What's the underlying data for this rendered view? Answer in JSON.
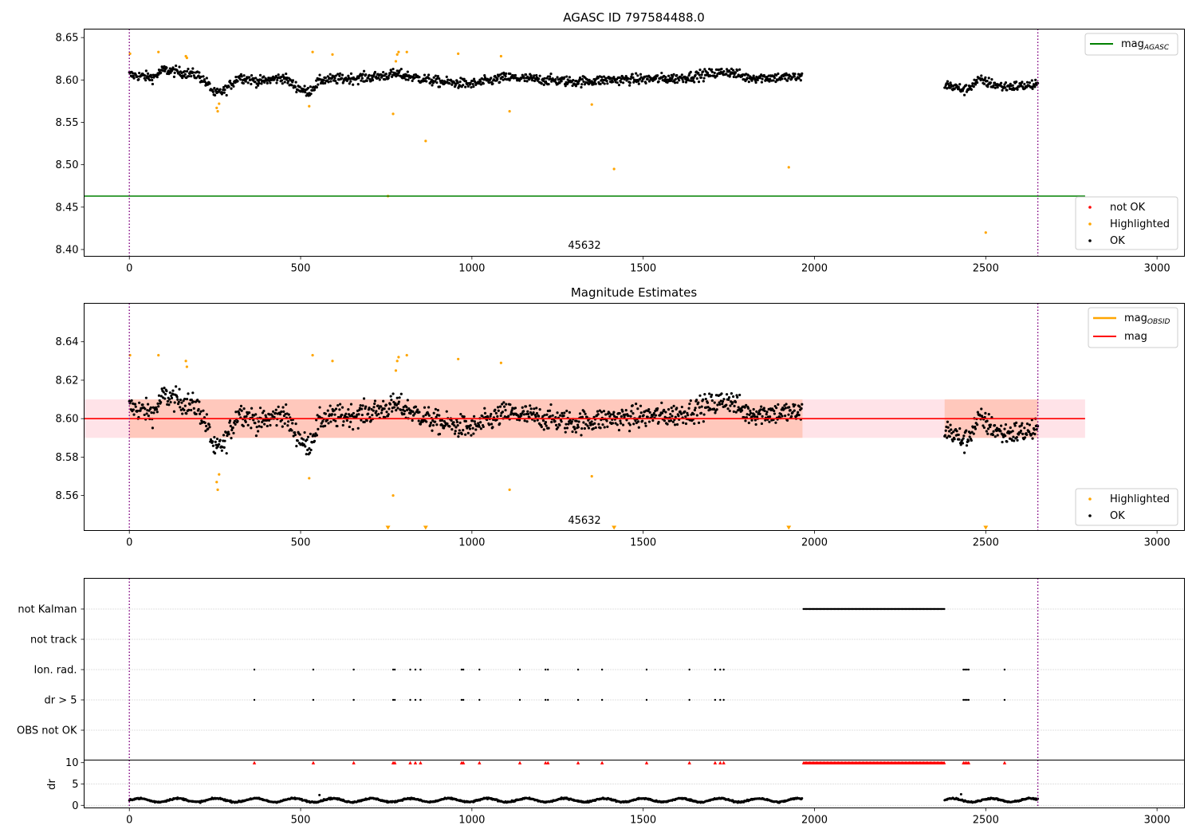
{
  "chart_data": [
    {
      "type": "scatter",
      "title": "AGASC ID 797584488.0",
      "xlim": [
        -132,
        3080
      ],
      "ylim": [
        8.392,
        8.66
      ],
      "xticks": [
        "0",
        "500",
        "1000",
        "1500",
        "2000",
        "2500",
        "3000"
      ],
      "yticks": [
        "8.40",
        "8.45",
        "8.50",
        "8.55",
        "8.60",
        "8.65"
      ],
      "annotation": "45632",
      "mag_agasc": 8.463,
      "obs_boundaries": [
        0,
        2652
      ],
      "legend_line": {
        "label_main": "mag",
        "label_sub": "AGASC",
        "color": "#008000",
        "placement": "upper right"
      },
      "legend_points": [
        {
          "label": "not OK",
          "color": "#ff0000"
        },
        {
          "label": "Highlighted",
          "color": "#ffa500"
        },
        {
          "label": "OK",
          "color": "#000000"
        }
      ],
      "legend_points_placement": "lower right",
      "ok_segments": [
        {
          "x_start": 0,
          "x_end": 1965,
          "baseline": [
            [
              0,
              8.606
            ],
            [
              70,
              8.603
            ],
            [
              100,
              8.612
            ],
            [
              200,
              8.606
            ],
            [
              230,
              8.595
            ],
            [
              250,
              8.583
            ],
            [
              280,
              8.588
            ],
            [
              320,
              8.604
            ],
            [
              380,
              8.598
            ],
            [
              450,
              8.603
            ],
            [
              480,
              8.594
            ],
            [
              520,
              8.585
            ],
            [
              560,
              8.6
            ],
            [
              700,
              8.603
            ],
            [
              780,
              8.607
            ],
            [
              900,
              8.598
            ],
            [
              1000,
              8.595
            ],
            [
              1100,
              8.603
            ],
            [
              1300,
              8.598
            ],
            [
              1400,
              8.6
            ],
            [
              1600,
              8.602
            ],
            [
              1750,
              8.61
            ],
            [
              1800,
              8.603
            ],
            [
              1965,
              8.603
            ]
          ],
          "noise": 0.006
        },
        {
          "x_start": 2380,
          "x_end": 2652,
          "baseline": [
            [
              2380,
              8.595
            ],
            [
              2440,
              8.588
            ],
            [
              2480,
              8.6
            ],
            [
              2550,
              8.592
            ],
            [
              2652,
              8.594
            ]
          ],
          "noise": 0.006
        }
      ],
      "highlighted": [
        [
          2,
          8.631
        ],
        [
          85,
          8.633
        ],
        [
          165,
          8.628
        ],
        [
          168,
          8.626
        ],
        [
          255,
          8.567
        ],
        [
          258,
          8.563
        ],
        [
          262,
          8.572
        ],
        [
          525,
          8.569
        ],
        [
          535,
          8.633
        ],
        [
          593,
          8.63
        ],
        [
          755,
          8.463
        ],
        [
          770,
          8.56
        ],
        [
          778,
          8.622
        ],
        [
          782,
          8.63
        ],
        [
          786,
          8.633
        ],
        [
          810,
          8.633
        ],
        [
          865,
          8.528
        ],
        [
          960,
          8.631
        ],
        [
          1085,
          8.628
        ],
        [
          1110,
          8.563
        ],
        [
          1350,
          8.571
        ],
        [
          1415,
          8.495
        ],
        [
          1925,
          8.497
        ],
        [
          2500,
          8.42
        ]
      ]
    },
    {
      "type": "scatter",
      "title": "Magnitude Estimates",
      "xlim": [
        -132,
        3080
      ],
      "ylim": [
        8.5418,
        8.66
      ],
      "xticks": [
        "0",
        "500",
        "1000",
        "1500",
        "2000",
        "2500",
        "3000"
      ],
      "yticks": [
        "8.56",
        "8.58",
        "8.60",
        "8.62",
        "8.64"
      ],
      "annotation": "45632",
      "mag": 8.6,
      "mag_band": [
        8.59,
        8.61
      ],
      "obs_band": [
        8.59,
        8.61
      ],
      "obs_boundaries": [
        0,
        2652
      ],
      "legend_lines": [
        {
          "label_main": "mag",
          "label_sub": "OBSID",
          "color": "#ffa500"
        },
        {
          "label_main": "mag",
          "label_sub": "",
          "color": "#ff0000"
        }
      ],
      "legend_lines_placement": "upper right",
      "legend_points": [
        {
          "label": "Highlighted",
          "color": "#ffa500"
        },
        {
          "label": "OK",
          "color": "#000000"
        }
      ],
      "legend_points_placement": "lower right",
      "highlighted": [
        [
          2,
          8.633
        ],
        [
          85,
          8.633
        ],
        [
          165,
          8.63
        ],
        [
          168,
          8.627
        ],
        [
          255,
          8.567
        ],
        [
          258,
          8.563
        ],
        [
          262,
          8.571
        ],
        [
          525,
          8.569
        ],
        [
          535,
          8.633
        ],
        [
          593,
          8.63
        ],
        [
          770,
          8.56
        ],
        [
          778,
          8.625
        ],
        [
          782,
          8.63
        ],
        [
          786,
          8.632
        ],
        [
          810,
          8.633
        ],
        [
          960,
          8.631
        ],
        [
          1085,
          8.629
        ],
        [
          1110,
          8.563
        ],
        [
          1350,
          8.57
        ]
      ],
      "off_scale_markers": [
        755,
        865,
        1415,
        1925,
        2500
      ]
    },
    {
      "type": "scatter",
      "title": "",
      "xlim": [
        -132,
        3080
      ],
      "xticks": [
        "0",
        "500",
        "1000",
        "1500",
        "2000",
        "2500",
        "3000"
      ],
      "categories": [
        "not Kalman",
        "not track",
        "Ion. rad.",
        "dr > 5",
        "OBS not OK"
      ],
      "flag_events": {
        "not Kalman": {
          "ranges": [
            [
              1968,
              2380
            ]
          ]
        },
        "not track": {
          "points": []
        },
        "Ion. rad.": {
          "points": [
            365,
            537,
            655,
            770,
            775,
            820,
            835,
            850,
            970,
            975,
            1022,
            1140,
            1215,
            1222,
            1310,
            1380,
            1510,
            1635,
            1710,
            1725,
            1735,
            2435,
            2440,
            2445,
            2450,
            2555
          ]
        },
        "dr > 5": {
          "points": [
            365,
            537,
            655,
            770,
            775,
            820,
            835,
            850,
            970,
            975,
            1022,
            1140,
            1215,
            1222,
            1310,
            1380,
            1510,
            1635,
            1710,
            1725,
            1735,
            2435,
            2440,
            2445,
            2450,
            2555
          ]
        },
        "OBS not OK": {
          "points": []
        }
      },
      "obs_boundaries": [
        0,
        2652
      ]
    },
    {
      "type": "scatter",
      "title": "",
      "ylabel": "dr",
      "xlim": [
        -132,
        3080
      ],
      "ylim": [
        -0.6,
        10.6
      ],
      "xticks": [
        "0",
        "500",
        "1000",
        "1500",
        "2000",
        "2500",
        "3000"
      ],
      "yticks": [
        "0",
        "5",
        "10"
      ],
      "clip_value": 10,
      "clip_marker_color": "#ff0000",
      "clipped_points": [
        365,
        537,
        655,
        770,
        775,
        820,
        835,
        850,
        970,
        975,
        1022,
        1140,
        1215,
        1222,
        1310,
        1380,
        1510,
        1635,
        1710,
        1725,
        1735,
        2435,
        2440,
        2445,
        2450,
        2555
      ],
      "clipped_ranges": [
        [
          1968,
          2380
        ]
      ],
      "dr_segments": [
        {
          "x_start": 0,
          "x_end": 1965,
          "mean": 1.2,
          "amplitude": 0.6
        },
        {
          "x_start": 2380,
          "x_end": 2652,
          "mean": 1.2,
          "amplitude": 0.6
        }
      ],
      "dr_outliers": [
        [
          555,
          2.4
        ],
        [
          2428,
          2.6
        ]
      ],
      "obs_boundaries": [
        0,
        2652
      ]
    }
  ]
}
